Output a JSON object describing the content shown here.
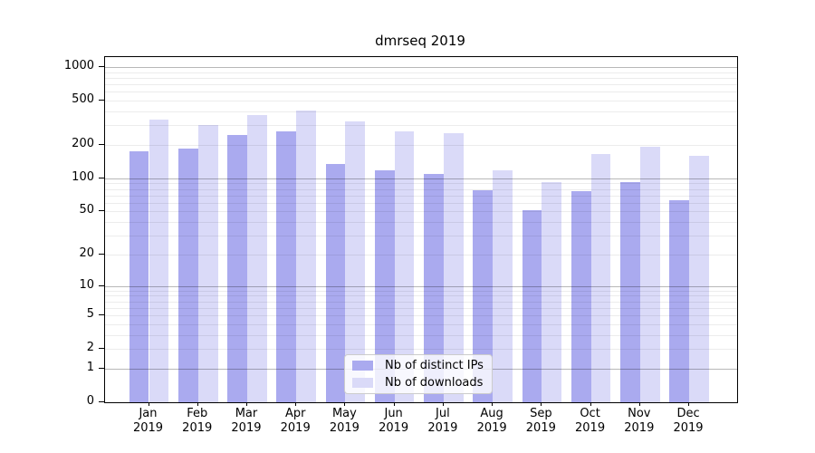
{
  "title": "dmrseq 2019",
  "colors": {
    "distinct_ips_bar": "#aaaaef",
    "downloads_bar": "#dadaf8",
    "axis": "#000000",
    "grid_major": "#b8b8b8",
    "grid_minor": "#ececec",
    "legend_border": "#cccccc"
  },
  "chart_data": {
    "type": "bar",
    "title": "dmrseq 2019",
    "scale": "log10(1+y)",
    "grid": "on",
    "legend_position": "lower center",
    "months": [
      "Jan",
      "Feb",
      "Mar",
      "Apr",
      "May",
      "Jun",
      "Jul",
      "Aug",
      "Sep",
      "Oct",
      "Nov",
      "Dec"
    ],
    "year": "2019",
    "categories": [
      "Jan 2019",
      "Feb 2019",
      "Mar 2019",
      "Apr 2019",
      "May 2019",
      "Jun 2019",
      "Jul 2019",
      "Aug 2019",
      "Sep 2019",
      "Oct 2019",
      "Nov 2019",
      "Dec 2019"
    ],
    "y_ticks": [
      0,
      1,
      2,
      5,
      10,
      20,
      50,
      100,
      200,
      500,
      1000
    ],
    "ylim": [
      0,
      1200
    ],
    "series": [
      {
        "name": "Nb of distinct IPs",
        "color": "#aaaaef",
        "values": [
          175,
          185,
          245,
          265,
          135,
          119,
          110,
          78,
          51,
          76,
          93,
          63
        ]
      },
      {
        "name": "Nb of downloads",
        "color": "#dadaf8",
        "values": [
          340,
          300,
          370,
          410,
          325,
          265,
          255,
          119,
          93,
          167,
          193,
          160
        ]
      }
    ]
  }
}
